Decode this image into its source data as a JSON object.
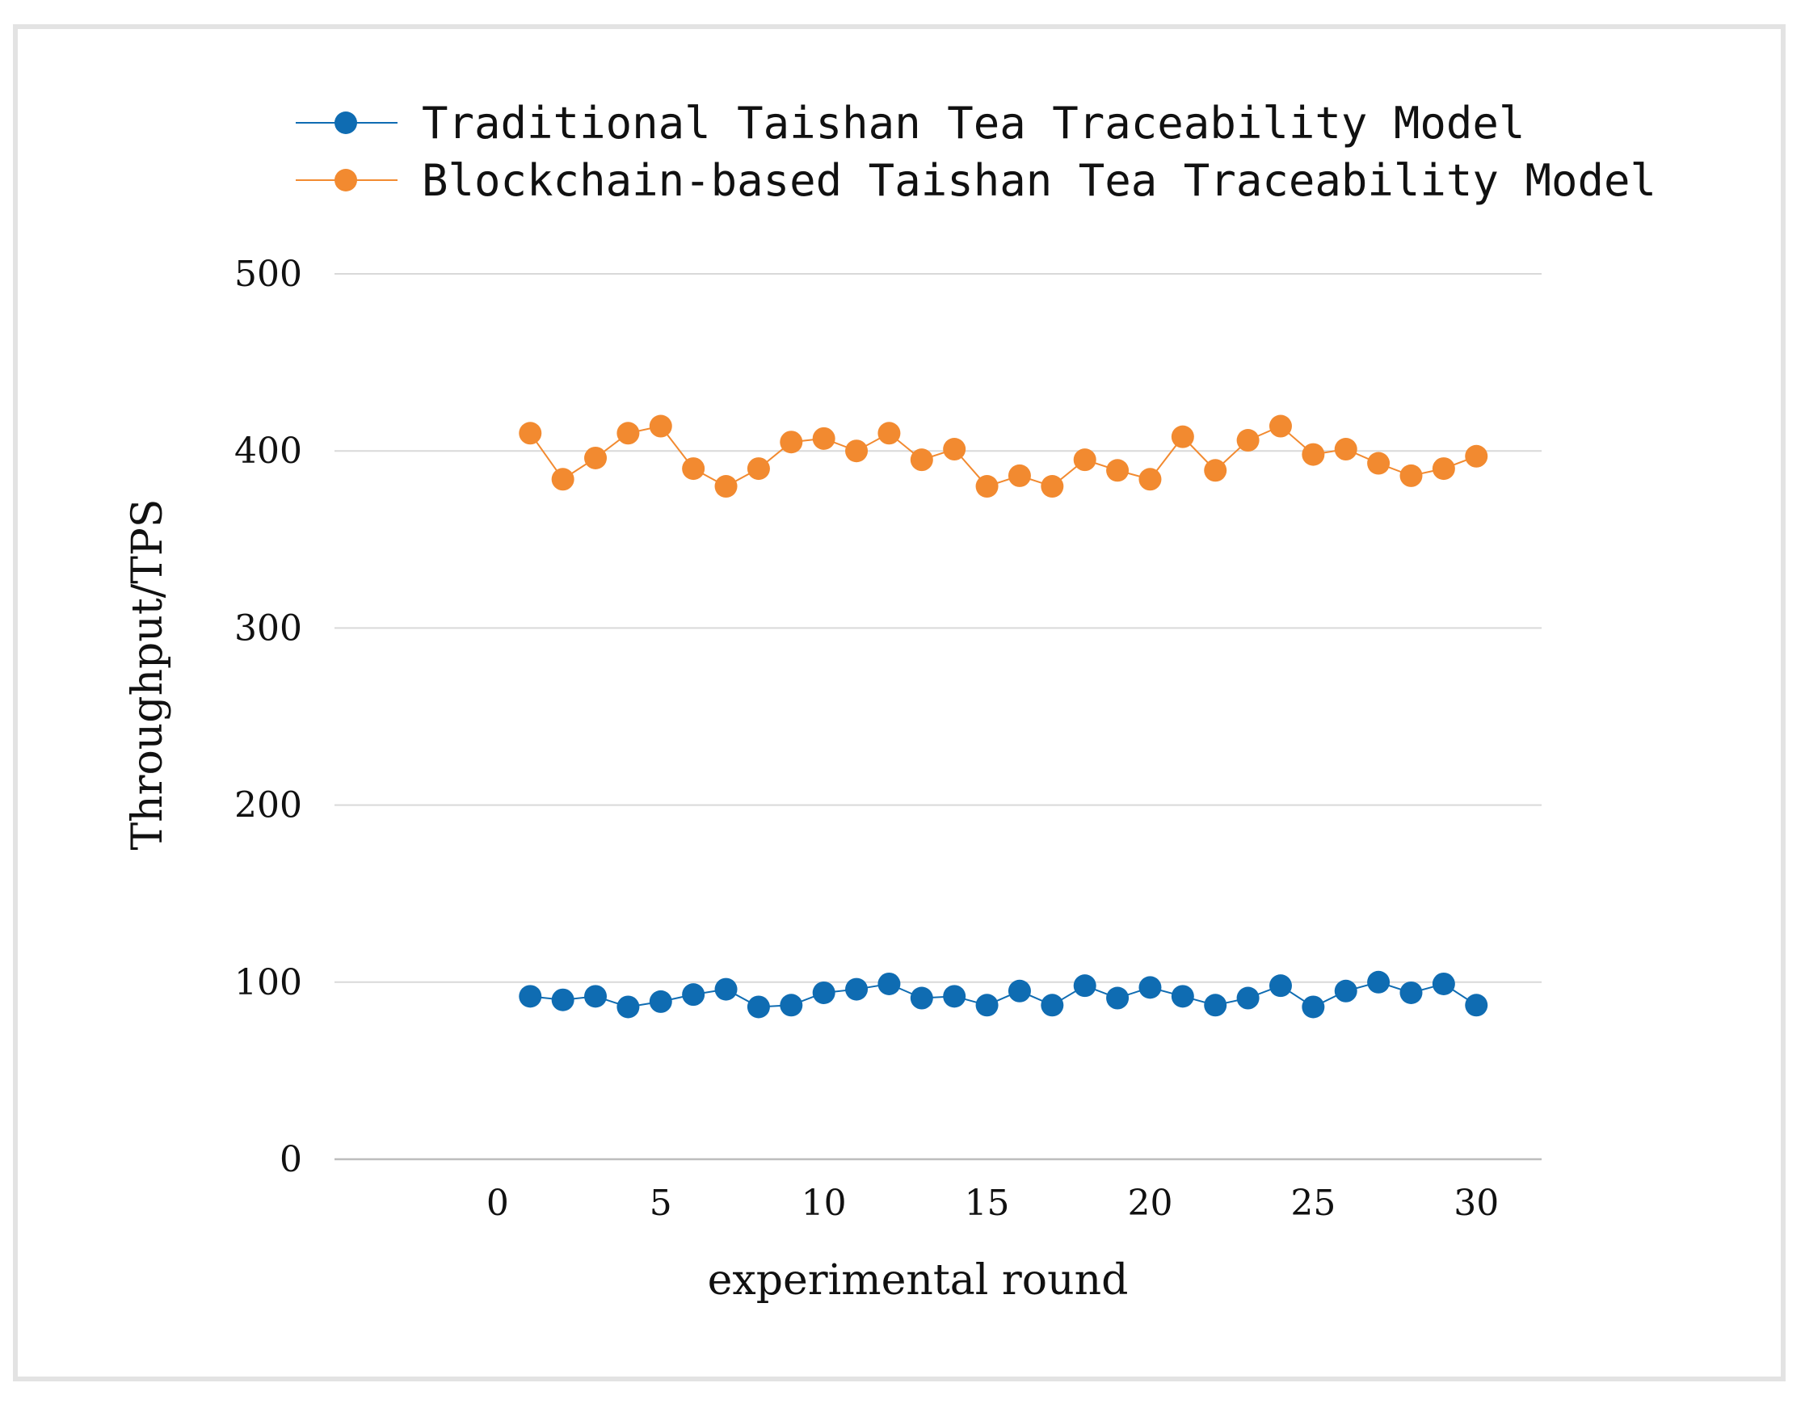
{
  "chart_data": {
    "type": "line",
    "title": "",
    "xlabel": "experimental round",
    "ylabel": "Throughput/TPS",
    "xlim": [
      -5,
      32
    ],
    "ylim": [
      0,
      500
    ],
    "x_ticks": [
      0,
      5,
      10,
      15,
      20,
      25,
      30
    ],
    "y_ticks": [
      0,
      100,
      200,
      300,
      400,
      500
    ],
    "grid": "horizontal",
    "legend_position": "top",
    "x": [
      1,
      2,
      3,
      4,
      5,
      6,
      7,
      8,
      9,
      10,
      11,
      12,
      13,
      14,
      15,
      16,
      17,
      18,
      19,
      20,
      21,
      22,
      23,
      24,
      25,
      26,
      27,
      28,
      29,
      30
    ],
    "series": [
      {
        "name": "Traditional Taishan Tea Traceability Model",
        "color": "#0f6cb2",
        "values": [
          92,
          90,
          92,
          86,
          89,
          93,
          96,
          86,
          87,
          94,
          96,
          99,
          91,
          92,
          87,
          95,
          87,
          98,
          91,
          97,
          92,
          87,
          91,
          98,
          86,
          95,
          100,
          94,
          99,
          87
        ]
      },
      {
        "name": "Blockchain-based Taishan Tea Traceability Model",
        "color": "#f28a30",
        "values": [
          410,
          384,
          396,
          410,
          414,
          390,
          380,
          390,
          405,
          407,
          400,
          410,
          395,
          401,
          380,
          386,
          380,
          395,
          389,
          384,
          408,
          389,
          406,
          414,
          398,
          401,
          393,
          386,
          390,
          397
        ]
      }
    ]
  }
}
